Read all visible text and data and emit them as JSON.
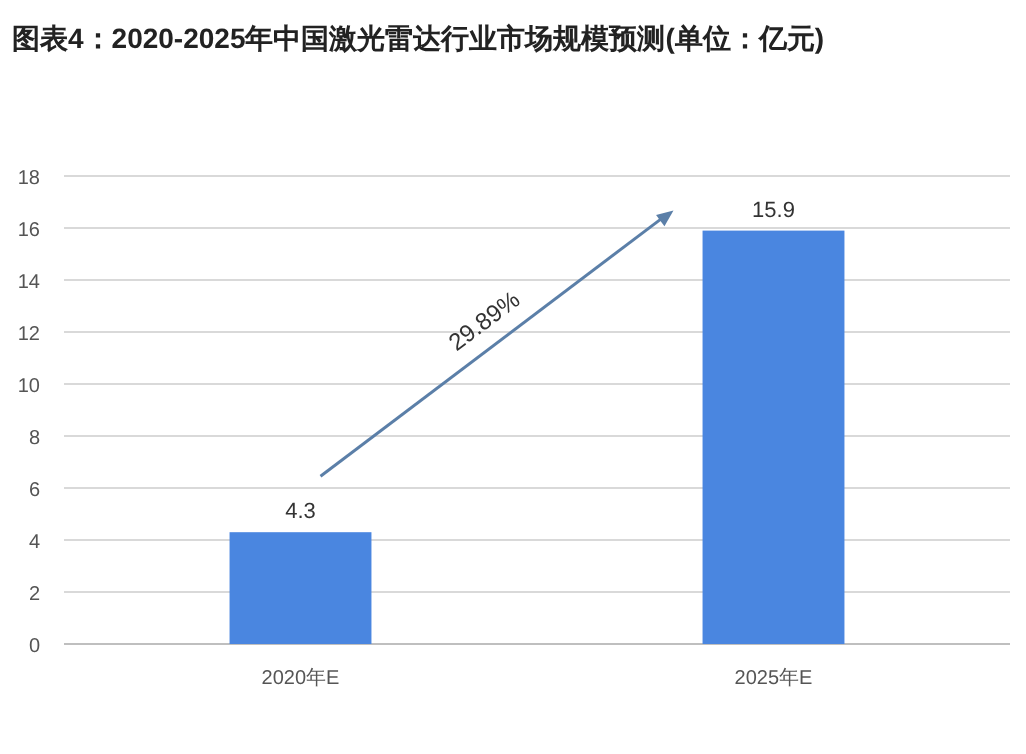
{
  "chart_data": {
    "type": "bar",
    "title": "图表4：2020-2025年中国激光雷达行业市场规模预测(单位：亿元)",
    "categories": [
      "2020年E",
      "2025年E"
    ],
    "values": [
      4.3,
      15.9
    ],
    "color": "#4a86e0",
    "ylim": [
      0,
      18
    ],
    "yticks": [
      0,
      2,
      4,
      6,
      8,
      10,
      12,
      14,
      16,
      18
    ],
    "grid": "y",
    "data_labels": true,
    "annotations": [
      "29.89%"
    ]
  }
}
